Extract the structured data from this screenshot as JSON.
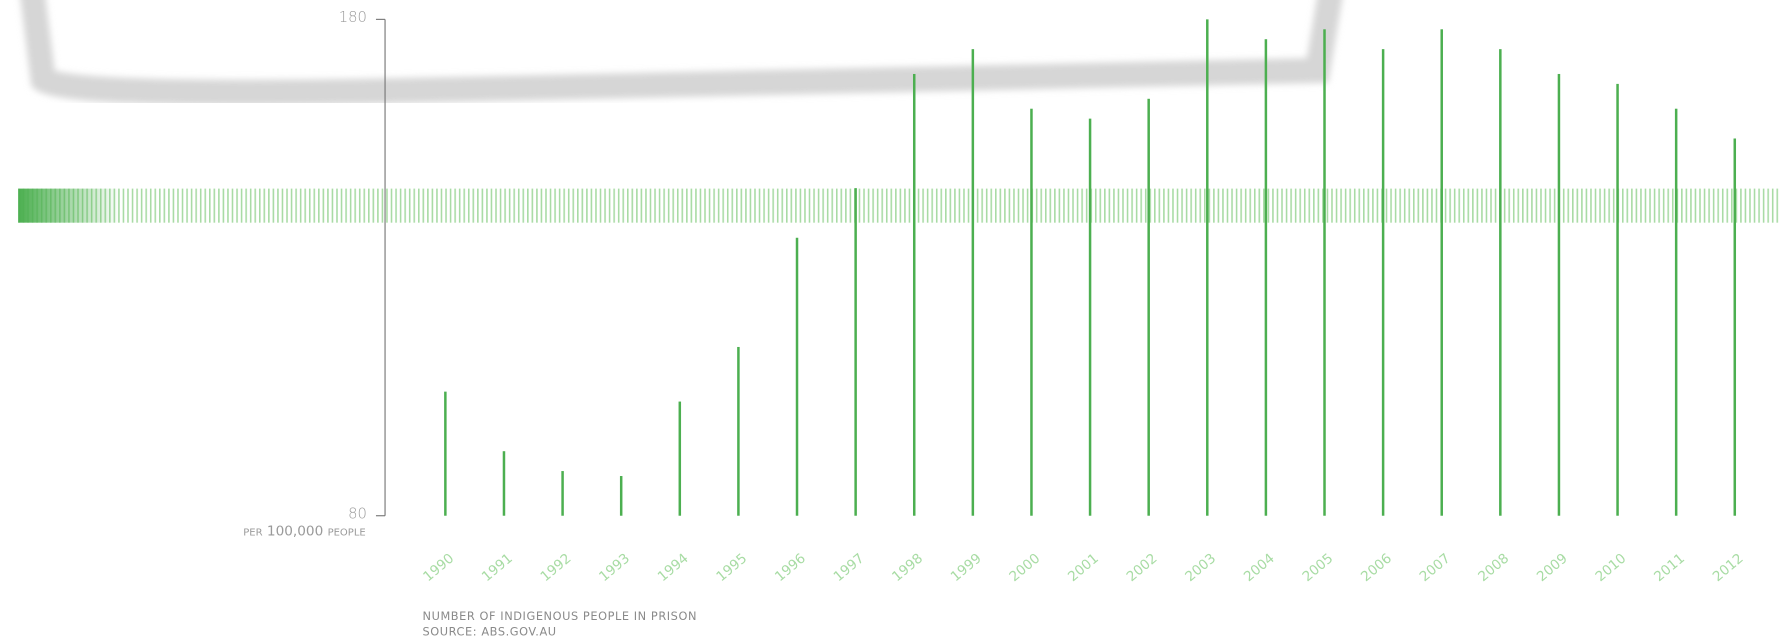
{
  "chart_data": {
    "type": "bar",
    "title": "NUMBER OF INDIGENOUS PEOPLE IN PRISON",
    "source": "SOURCE: ABS.GOV.AU",
    "y_label": "per 100,000 people",
    "categories": [
      "1990",
      "1991",
      "1992",
      "1993",
      "1994",
      "1995",
      "1996",
      "1997",
      "1998",
      "1999",
      "2000",
      "2001",
      "2002",
      "2003",
      "2004",
      "2005",
      "2006",
      "2007",
      "2008",
      "2009",
      "2010",
      "2011",
      "2012"
    ],
    "values": [
      105,
      93,
      89,
      88,
      103,
      114,
      136,
      146,
      169,
      174,
      162,
      160,
      164,
      180,
      176,
      178,
      174,
      178,
      174,
      169,
      167,
      162,
      156
    ],
    "color": "#4caf50",
    "ylim": [
      80,
      180
    ],
    "yticks": [
      80,
      180
    ]
  }
}
